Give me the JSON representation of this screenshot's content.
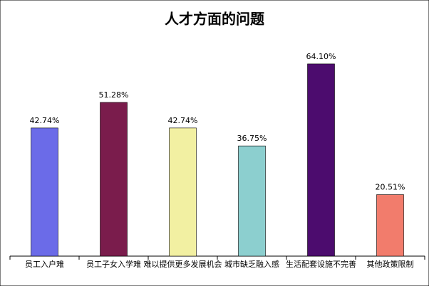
{
  "chart_data": {
    "type": "bar",
    "title": "人才方面的问题",
    "categories": [
      "员工入户难",
      "员工子女入学难",
      "难以提供更多发展机会",
      "城市缺乏融入感",
      "生活配套设施不完善",
      "其他政策限制"
    ],
    "values": [
      42.74,
      51.28,
      42.74,
      36.75,
      64.1,
      20.51
    ],
    "value_labels": [
      "42.74%",
      "51.28%",
      "42.74%",
      "36.75%",
      "64.10%",
      "20.51%"
    ],
    "colors": [
      "#6b6be8",
      "#7a1c4c",
      "#f2f0a2",
      "#8ccfcf",
      "#4c0c6e",
      "#f27c6c"
    ],
    "ylim": [
      0,
      70
    ]
  }
}
